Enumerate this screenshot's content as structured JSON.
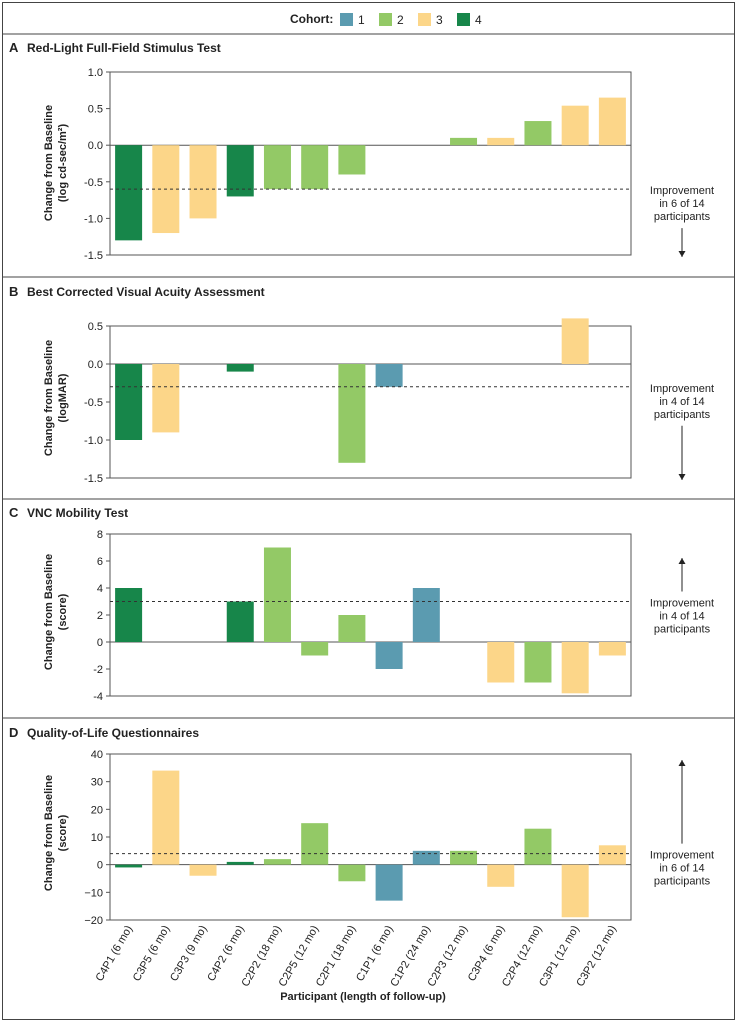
{
  "legend": {
    "title": "Cohort:",
    "items": [
      {
        "label": "1",
        "color": "#5b9bb0"
      },
      {
        "label": "2",
        "color": "#93c966"
      },
      {
        "label": "3",
        "color": "#fcd689"
      },
      {
        "label": "4",
        "color": "#17864a"
      }
    ]
  },
  "x_axis_title": "Participant (length of follow-up)",
  "chart_data": [
    {
      "panel_letter": "A",
      "title": "Red-Light Full-Field Stimulus Test",
      "type": "bar",
      "ylabel": [
        "Change from Baseline",
        "(log cd-sec/m²)"
      ],
      "ylim": [
        -1.5,
        1.0
      ],
      "yticks": [
        "1.0",
        "0.5",
        "0.0",
        "-0.5",
        "-1.0",
        "-1.5"
      ],
      "values": [
        -1.3,
        -1.2,
        -1.0,
        -0.7,
        -0.6,
        -0.6,
        -0.4,
        null,
        null,
        0.1,
        0.1,
        0.33,
        0.54,
        0.65
      ],
      "cohorts": [
        4,
        3,
        3,
        4,
        2,
        2,
        2,
        null,
        null,
        2,
        3,
        2,
        3,
        3
      ],
      "threshold": -0.6,
      "annotation": [
        "Improvement",
        "in 6 of 14",
        "participants"
      ],
      "arrow": "down"
    },
    {
      "panel_letter": "B",
      "title": "Best Corrected Visual Acuity Assessment",
      "type": "bar",
      "ylabel": [
        "Change from Baseline",
        "(logMAR)"
      ],
      "ylim": [
        -1.5,
        0.5
      ],
      "yticks": [
        "0.5",
        "0.0",
        "-0.5",
        "-1.0",
        "-1.5"
      ],
      "values": [
        -1.0,
        -0.9,
        null,
        -0.1,
        null,
        null,
        -1.3,
        -0.3,
        null,
        null,
        null,
        null,
        0.6,
        null
      ],
      "cohorts": [
        4,
        3,
        null,
        4,
        null,
        null,
        2,
        1,
        null,
        null,
        null,
        null,
        3,
        null
      ],
      "threshold": -0.3,
      "annotation": [
        "Improvement",
        "in 4 of 14",
        "participants"
      ],
      "arrow": "down"
    },
    {
      "panel_letter": "C",
      "title": "VNC Mobility Test",
      "type": "bar",
      "ylabel": [
        "Change from Baseline",
        "(score)"
      ],
      "ylim": [
        -4,
        8
      ],
      "yticks": [
        "8",
        "6",
        "4",
        "2",
        "0",
        "-2",
        "-4"
      ],
      "values": [
        4,
        null,
        null,
        3,
        7,
        -1,
        2,
        -2,
        4,
        null,
        -3,
        -3,
        -3.8,
        -1
      ],
      "cohorts": [
        4,
        null,
        null,
        4,
        2,
        2,
        2,
        1,
        1,
        null,
        3,
        2,
        3,
        3
      ],
      "threshold": 3,
      "annotation": [
        "Improvement",
        "in 4 of 14",
        "participants"
      ],
      "arrow": "up"
    },
    {
      "panel_letter": "D",
      "title": "Quality-of-Life Questionnaires",
      "type": "bar",
      "ylabel": [
        "Change from Baseline",
        "(score)"
      ],
      "ylim": [
        -20,
        40
      ],
      "yticks": [
        "40",
        "30",
        "20",
        "10",
        "0",
        "−10",
        "−20"
      ],
      "values": [
        -1,
        34,
        -4,
        1,
        2,
        15,
        -6,
        -13,
        5,
        5,
        -8,
        13,
        -19,
        7
      ],
      "cohorts": [
        4,
        3,
        3,
        4,
        2,
        2,
        2,
        1,
        1,
        2,
        3,
        2,
        3,
        3
      ],
      "threshold": 4,
      "annotation": [
        "Improvement",
        "in 6 of 14",
        "participants"
      ],
      "arrow": "up",
      "categories": [
        "C4P1 (6 mo)",
        "C3P5 (6 mo)",
        "C3P3 (9 mo)",
        "C4P2 (6 mo)",
        "C2P2 (18 mo)",
        "C2P5 (12 mo)",
        "C2P1 (18 mo)",
        "C1P1 (6 mo)",
        "C1P2 (24 mo)",
        "C2P3 (12 mo)",
        "C3P4 (6 mo)",
        "C2P4 (12 mo)",
        "C3P1 (12 mo)",
        "C3P2 (12 mo)"
      ]
    }
  ]
}
